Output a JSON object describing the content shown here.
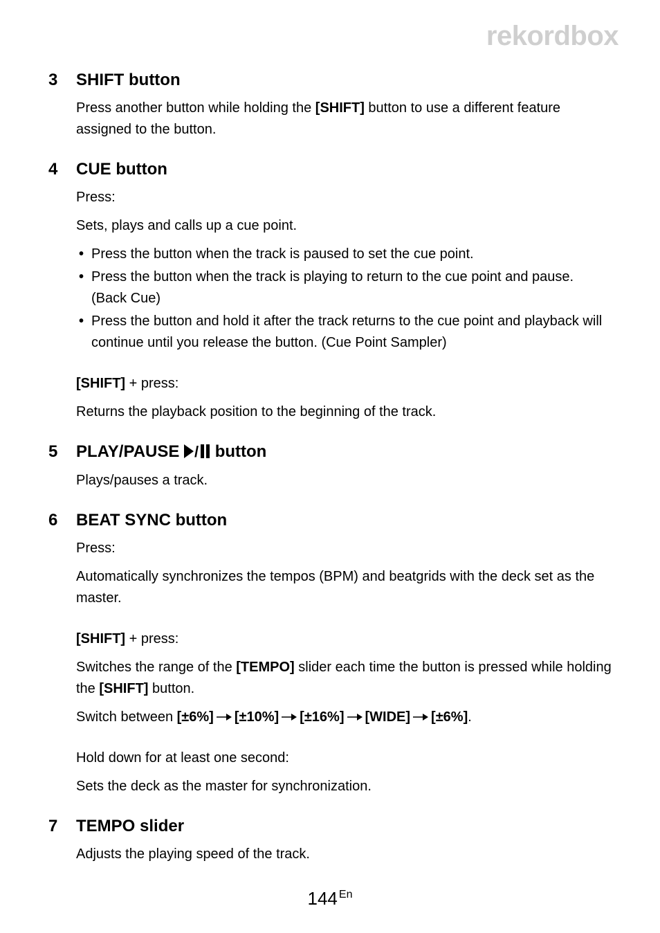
{
  "brand": "rekordbox",
  "items": [
    {
      "num": "3",
      "heading": "SHIFT button",
      "blocks": [
        {
          "type": "para",
          "runs": [
            {
              "t": "Press another button while holding the "
            },
            {
              "t": "[SHIFT]",
              "b": true
            },
            {
              "t": " button to use a different feature assigned to the button."
            }
          ]
        }
      ]
    },
    {
      "num": "4",
      "heading": "CUE button",
      "blocks": [
        {
          "type": "para",
          "runs": [
            {
              "t": "Press:"
            }
          ]
        },
        {
          "type": "para",
          "runs": [
            {
              "t": "Sets, plays and calls up a cue point."
            }
          ]
        },
        {
          "type": "bullets",
          "items": [
            [
              {
                "t": "Press the button when the track is paused to set the cue point."
              }
            ],
            [
              {
                "t": "Press the button when the track is playing to return to the cue point and pause. (Back Cue)"
              }
            ],
            [
              {
                "t": "Press the button and hold it after the track returns to the cue point and playback will continue until you release the button. (Cue Point Sampler)"
              }
            ]
          ]
        },
        {
          "type": "spacer"
        },
        {
          "type": "para",
          "runs": [
            {
              "t": "[SHIFT]",
              "b": true
            },
            {
              "t": " + press:"
            }
          ]
        },
        {
          "type": "para",
          "runs": [
            {
              "t": "Returns the playback position to the beginning of the track."
            }
          ]
        }
      ]
    },
    {
      "num": "5",
      "heading_runs": [
        {
          "t": "PLAY/PAUSE "
        },
        {
          "icon": "playpause"
        },
        {
          "t": " button"
        }
      ],
      "blocks": [
        {
          "type": "para",
          "runs": [
            {
              "t": "Plays/pauses a track."
            }
          ]
        }
      ]
    },
    {
      "num": "6",
      "heading": "BEAT SYNC button",
      "blocks": [
        {
          "type": "para",
          "runs": [
            {
              "t": "Press:"
            }
          ]
        },
        {
          "type": "para",
          "runs": [
            {
              "t": "Automatically synchronizes the tempos (BPM) and beatgrids with the deck set as the master."
            }
          ]
        },
        {
          "type": "spacer"
        },
        {
          "type": "para",
          "runs": [
            {
              "t": "[SHIFT]",
              "b": true
            },
            {
              "t": " + press:"
            }
          ]
        },
        {
          "type": "para",
          "runs": [
            {
              "t": "Switches the range of the "
            },
            {
              "t": "[TEMPO]",
              "b": true
            },
            {
              "t": " slider each time the button is pressed while holding the "
            },
            {
              "t": "[SHIFT]",
              "b": true
            },
            {
              "t": " button."
            }
          ]
        },
        {
          "type": "para",
          "runs": [
            {
              "t": "Switch between "
            },
            {
              "t": "[±6%]",
              "b": true
            },
            {
              "arrow": true
            },
            {
              "t": "[±10%]",
              "b": true
            },
            {
              "arrow": true
            },
            {
              "t": "[±16%]",
              "b": true
            },
            {
              "arrow": true
            },
            {
              "t": "[WIDE]",
              "b": true
            },
            {
              "arrow": true
            },
            {
              "t": "[±6%]",
              "b": true
            },
            {
              "t": "."
            }
          ]
        },
        {
          "type": "spacer"
        },
        {
          "type": "para",
          "runs": [
            {
              "t": "Hold down for at least one second:"
            }
          ]
        },
        {
          "type": "para",
          "runs": [
            {
              "t": "Sets the deck as the master for synchronization."
            }
          ]
        }
      ]
    },
    {
      "num": "7",
      "heading": "TEMPO slider",
      "blocks": [
        {
          "type": "para",
          "runs": [
            {
              "t": "Adjusts the playing speed of the track."
            }
          ]
        }
      ]
    }
  ],
  "footer": {
    "page": "144",
    "suffix": "En"
  },
  "icons": {
    "playpause_svg": "<svg width=\"38\" height=\"20\" viewBox=\"0 0 38 20\"><polygon points=\"0,0 14,10 0,20\" fill=\"#000\"/><text x=\"15\" y=\"18\" font-size=\"22\" font-family=\"Arial\" fill=\"#000\">/</text><rect x=\"24\" y=\"0\" width=\"5\" height=\"20\" fill=\"#000\"/><rect x=\"32\" y=\"0\" width=\"5\" height=\"20\" fill=\"#000\"/></svg>",
    "arrow_svg": "<svg width=\"22\" height=\"12\" viewBox=\"0 0 22 12\" style=\"vertical-align:0px;margin:0 4px;\"><line x1=\"0\" y1=\"6\" x2=\"15\" y2=\"6\" stroke=\"#000\" stroke-width=\"1.5\"/><polygon points=\"14,1 22,6 14,11\" fill=\"#000\"/></svg>"
  }
}
